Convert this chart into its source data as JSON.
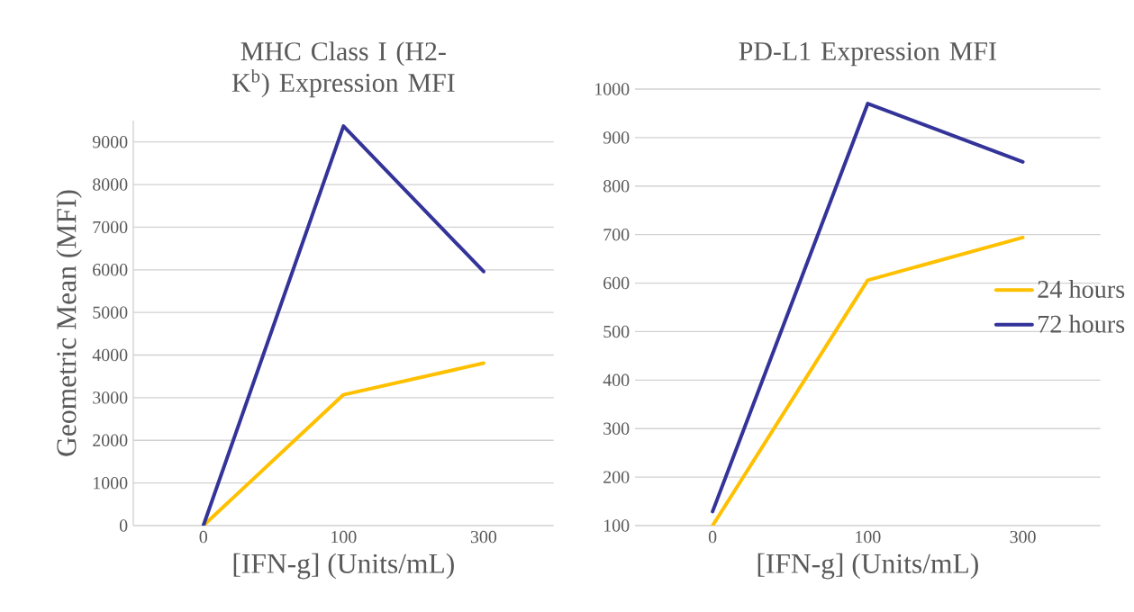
{
  "chart_data": [
    {
      "type": "line",
      "title": "MHC Class I (H2-K$^{b}$) Expression MFI",
      "xlabel": "[IFN-g] (Units/mL)",
      "ylabel": "Geometric Mean (MFI)",
      "categories": [
        "0",
        "100",
        "300"
      ],
      "series": [
        {
          "color": "#ffc000",
          "values": [
            0,
            3070,
            3810
          ]
        },
        {
          "color": "#333399",
          "values": [
            0,
            9370,
            5960
          ]
        }
      ],
      "ylim": [
        0,
        9500
      ],
      "yticks": [
        0,
        1000,
        2000,
        3000,
        4000,
        5000,
        6000,
        7000,
        8000,
        9000
      ],
      "grid": "y"
    },
    {
      "type": "line",
      "title": "PD-L1 Expression MFI",
      "xlabel": "[IFN-g] (Units/mL)",
      "categories": [
        "0",
        "100",
        "300"
      ],
      "series": [
        {
          "name": "24 hours",
          "color": "#ffc000",
          "values": [
            100,
            606,
            694
          ]
        },
        {
          "name": "72 hours",
          "color": "#333399",
          "values": [
            129,
            970,
            850
          ]
        }
      ],
      "ylim": [
        100,
        1000
      ],
      "yticks": [
        100,
        200,
        300,
        400,
        500,
        600,
        700,
        800,
        900,
        1000
      ],
      "grid": "y",
      "legend": "right"
    }
  ]
}
